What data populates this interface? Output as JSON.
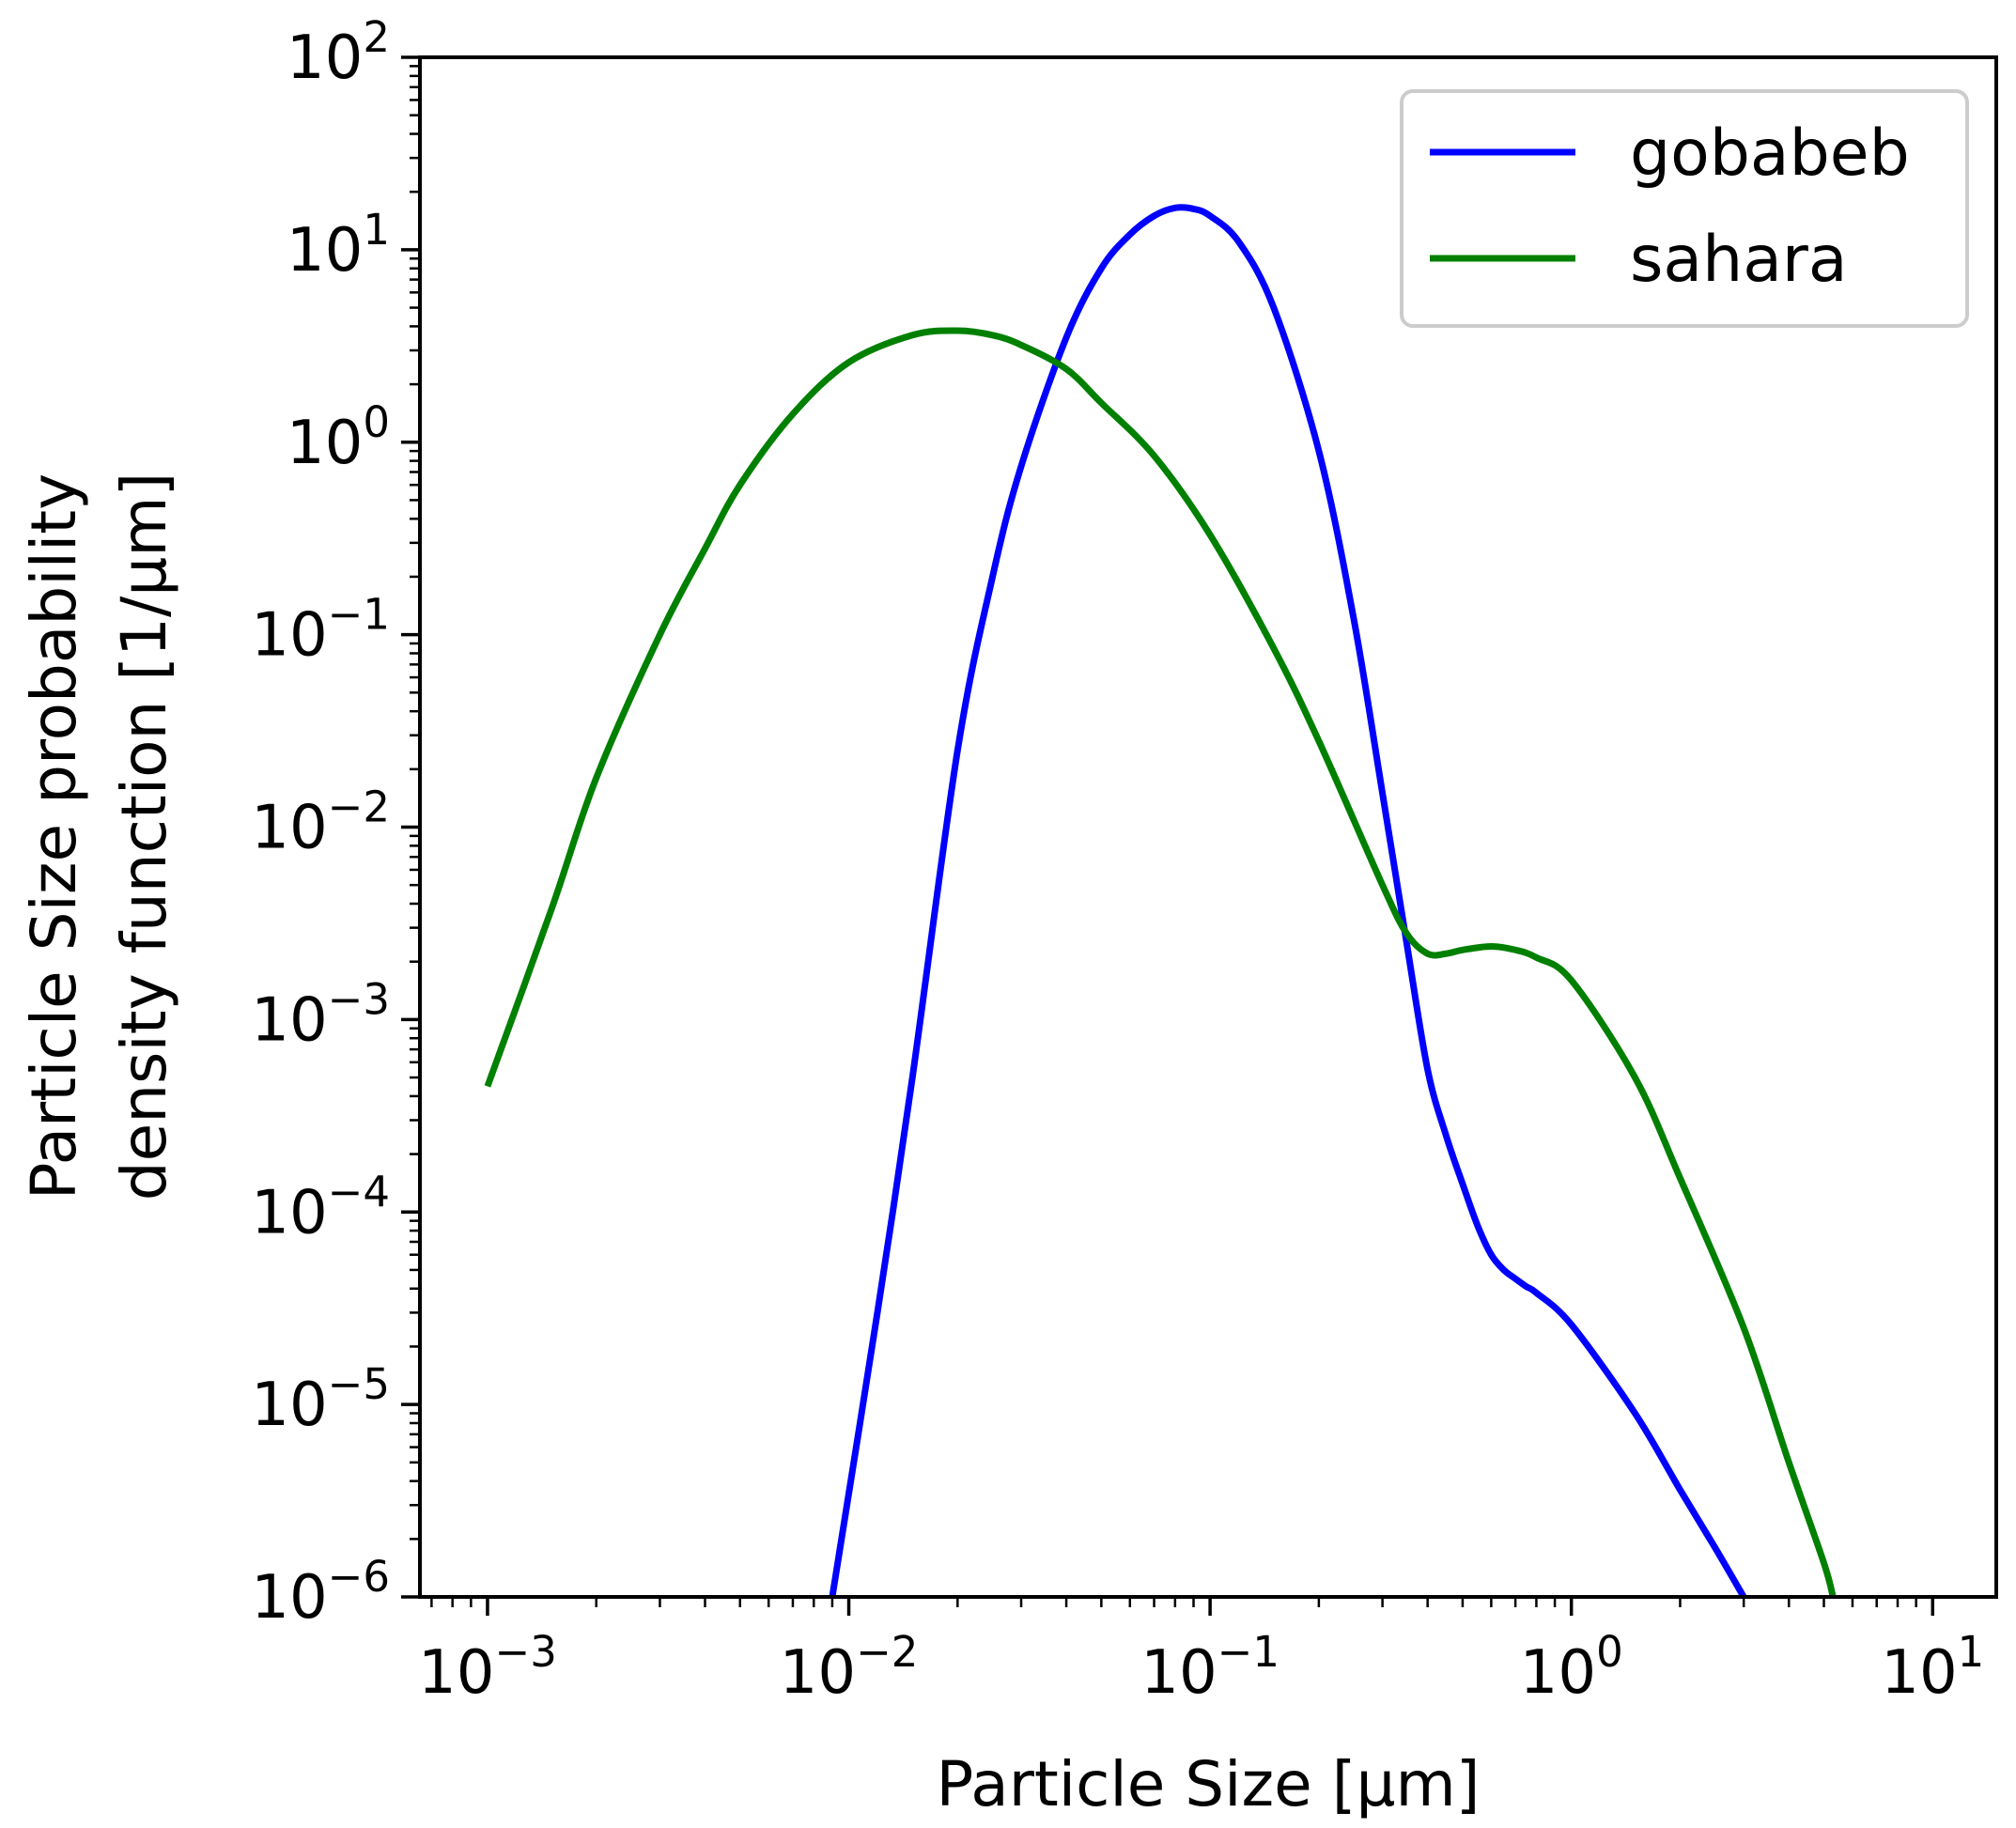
{
  "chart_data": {
    "type": "line",
    "title": "",
    "xlabel": "Particle Size [μm]",
    "ylabel": [
      "Particle Size probability",
      "density function [1/μm]"
    ],
    "xscale": "log",
    "yscale": "log",
    "xlim": [
      0.00065,
      15
    ],
    "ylim": [
      1e-06,
      100
    ],
    "x_ticks": [
      {
        "value": 0.001,
        "base": "10",
        "exp": "−3"
      },
      {
        "value": 0.01,
        "base": "10",
        "exp": "−2"
      },
      {
        "value": 0.1,
        "base": "10",
        "exp": "−1"
      },
      {
        "value": 1,
        "base": "10",
        "exp": "0"
      },
      {
        "value": 10,
        "base": "10",
        "exp": "1"
      }
    ],
    "y_ticks": [
      {
        "value": 100,
        "base": "10",
        "exp": "2"
      },
      {
        "value": 10,
        "base": "10",
        "exp": "1"
      },
      {
        "value": 1,
        "base": "10",
        "exp": "0"
      },
      {
        "value": 0.1,
        "base": "10",
        "exp": "−1"
      },
      {
        "value": 0.01,
        "base": "10",
        "exp": "−2"
      },
      {
        "value": 0.001,
        "base": "10",
        "exp": "−3"
      },
      {
        "value": 0.0001,
        "base": "10",
        "exp": "−4"
      },
      {
        "value": 1e-05,
        "base": "10",
        "exp": "−5"
      },
      {
        "value": 1e-06,
        "base": "10",
        "exp": "−6"
      }
    ],
    "legend_position": "top-right",
    "series": [
      {
        "name": "gobabeb",
        "color": "#0000ff",
        "x": [
          0.009,
          0.012,
          0.015,
          0.02,
          0.025,
          0.03,
          0.04,
          0.05,
          0.06,
          0.07,
          0.08,
          0.09,
          0.1,
          0.12,
          0.15,
          0.2,
          0.25,
          0.3,
          0.35,
          0.4,
          0.45,
          0.5,
          0.55,
          0.6,
          0.65,
          0.7,
          0.75,
          0.8,
          1.0,
          1.5,
          2.0,
          2.5,
          3.0
        ],
        "y": [
          1e-06,
          3e-05,
          0.0005,
          0.025,
          0.2,
          0.75,
          3.5,
          8.0,
          12.0,
          15.0,
          16.5,
          16.3,
          15.0,
          11.0,
          5.0,
          0.9,
          0.12,
          0.015,
          0.0025,
          0.00055,
          0.00025,
          0.00014,
          8.5e-05,
          6e-05,
          5e-05,
          4.5e-05,
          4.1e-05,
          3.8e-05,
          2.6e-05,
          9e-06,
          3.6e-06,
          1.8e-06,
          1e-06
        ]
      },
      {
        "name": "sahara",
        "color": "#008000",
        "x": [
          0.001,
          0.0015,
          0.002,
          0.003,
          0.004,
          0.005,
          0.007,
          0.01,
          0.015,
          0.02,
          0.025,
          0.03,
          0.04,
          0.05,
          0.07,
          0.1,
          0.15,
          0.2,
          0.3,
          0.35,
          0.4,
          0.45,
          0.5,
          0.6,
          0.7,
          0.8,
          1.0,
          1.5,
          2.0,
          3.0,
          4.0,
          5.0,
          5.3
        ],
        "y": [
          0.00045,
          0.0037,
          0.018,
          0.1,
          0.28,
          0.6,
          1.4,
          2.6,
          3.6,
          3.8,
          3.6,
          3.2,
          2.4,
          1.6,
          0.85,
          0.33,
          0.085,
          0.028,
          0.005,
          0.0028,
          0.0022,
          0.0022,
          0.0023,
          0.0024,
          0.0023,
          0.0021,
          0.0016,
          0.0005,
          0.00015,
          2.5e-05,
          5e-06,
          1.5e-06,
          1e-06
        ]
      }
    ]
  }
}
